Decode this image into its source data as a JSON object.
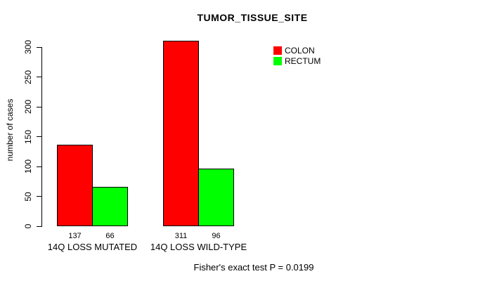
{
  "title": "TUMOR_TISSUE_SITE",
  "y_axis": {
    "label": "number of cases"
  },
  "footer": "Fisher's exact test P = 0.0199",
  "legend": {
    "items": [
      {
        "label": "COLON",
        "color": "#FF0000"
      },
      {
        "label": "RECTUM",
        "color": "#00FF00"
      }
    ]
  },
  "chart_data": {
    "type": "bar",
    "title": "TUMOR_TISSUE_SITE",
    "xlabel": "",
    "ylabel": "number of cases",
    "categories": [
      "14Q LOSS MUTATED",
      "14Q LOSS WILD-TYPE"
    ],
    "series": [
      {
        "name": "COLON",
        "color": "#FF0000",
        "values": [
          137,
          311
        ]
      },
      {
        "name": "RECTUM",
        "color": "#00FF00",
        "values": [
          66,
          96
        ]
      }
    ],
    "yticks": [
      0,
      50,
      100,
      150,
      200,
      250,
      300
    ],
    "ylim": [
      0,
      300
    ],
    "grid": false,
    "bar_value_labels": true,
    "legend_position": "top-right",
    "annotation": "Fisher's exact test P = 0.0199"
  }
}
